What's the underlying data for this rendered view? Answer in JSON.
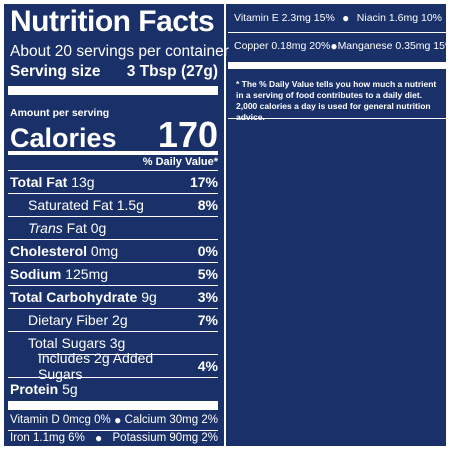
{
  "title": "Nutrition Facts",
  "servings_per_container": "About 20 servings per container",
  "serving_size": {
    "label": "Serving size",
    "value": "3 Tbsp (27g)"
  },
  "amount_per_serving": "Amount per serving",
  "calories": {
    "label": "Calories",
    "value": "170"
  },
  "daily_value_header": "% Daily Value*",
  "nutrients": [
    {
      "name": "Total Fat",
      "amount": "13g",
      "dv": "17%"
    },
    {
      "name": "Saturated Fat",
      "amount": "1.5g",
      "dv": "8%"
    },
    {
      "name": "Trans",
      "name_suffix": "Fat",
      "amount": "0g",
      "dv": ""
    },
    {
      "name": "Cholesterol",
      "amount": "0mg",
      "dv": "0%"
    },
    {
      "name": "Sodium",
      "amount": "125mg",
      "dv": "5%"
    },
    {
      "name": "Total Carbohydrate",
      "amount": "9g",
      "dv": "3%"
    },
    {
      "name": "Dietary Fiber",
      "amount": "2g",
      "dv": "7%"
    },
    {
      "name": "Total Sugars",
      "amount": "3g",
      "dv": ""
    },
    {
      "name": "Includes 2g Added Sugars",
      "amount": "",
      "dv": "4%"
    },
    {
      "name": "Protein",
      "amount": "5g",
      "dv": ""
    }
  ],
  "vitamins_left": [
    {
      "a": "Vitamin D 0mcg 0%",
      "b": "Calcium 30mg 2%"
    },
    {
      "a": "Iron 1.1mg 6%",
      "b": "Potassium 90mg 2%"
    }
  ],
  "vitamins_right": [
    {
      "a": "Vitamin E 2.3mg 15%",
      "b": "Niacin 1.6mg 10%"
    },
    {
      "a": "Copper 0.18mg 20%",
      "b": "Manganese 0.35mg 15%"
    }
  ],
  "bullet": "●",
  "footnote": "* The % Daily Value tells you how much a nutrient in a serving of food contributes to a daily diet. 2,000 calories a day is used for general nutrition advice.",
  "colors": {
    "background": "#1a3068",
    "text": "#ffffff"
  }
}
